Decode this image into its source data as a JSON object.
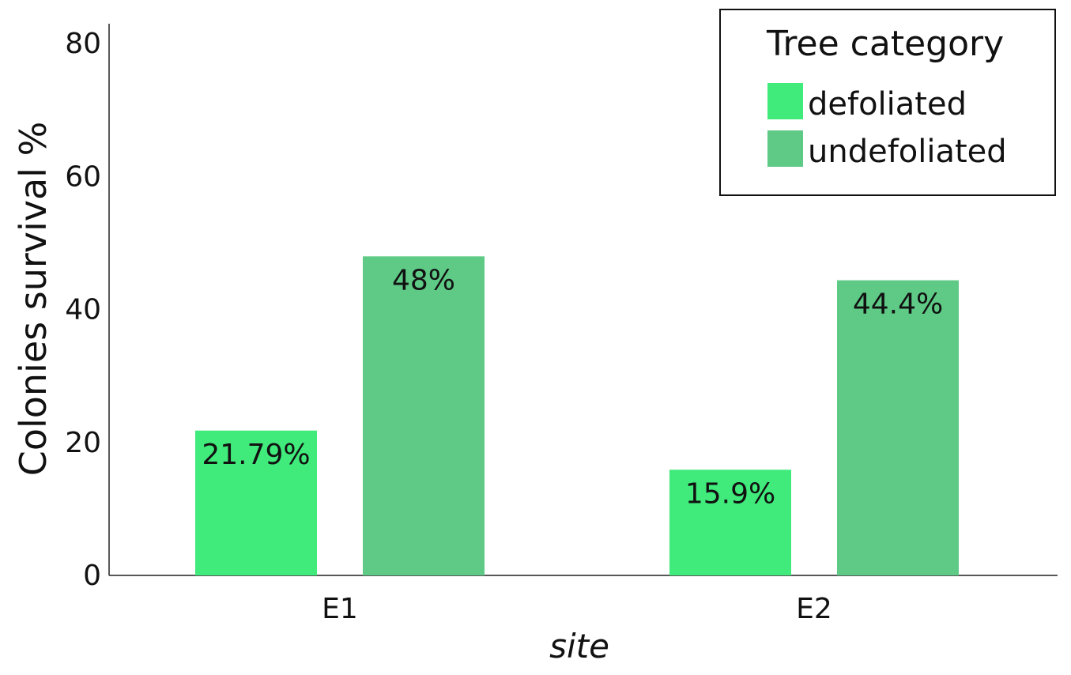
{
  "chart_data": {
    "type": "bar",
    "categories": [
      "E1",
      "E2"
    ],
    "series": [
      {
        "name": "defoliated",
        "values": [
          21.79,
          15.9
        ],
        "labels": [
          "21.79%",
          "15.9%"
        ],
        "color": "#40EB7C"
      },
      {
        "name": "undefoliated",
        "values": [
          48,
          44.4
        ],
        "labels": [
          "48%",
          "44.4%"
        ],
        "color": "#5ECA86"
      }
    ],
    "title": "",
    "xlabel": "site",
    "ylabel": "Colonies survival %",
    "ylim": [
      0,
      83
    ],
    "yticks": [
      "0",
      "20",
      "40",
      "60",
      "80"
    ],
    "grid": false,
    "legend": {
      "title": "Tree category",
      "position": "top-right"
    }
  }
}
